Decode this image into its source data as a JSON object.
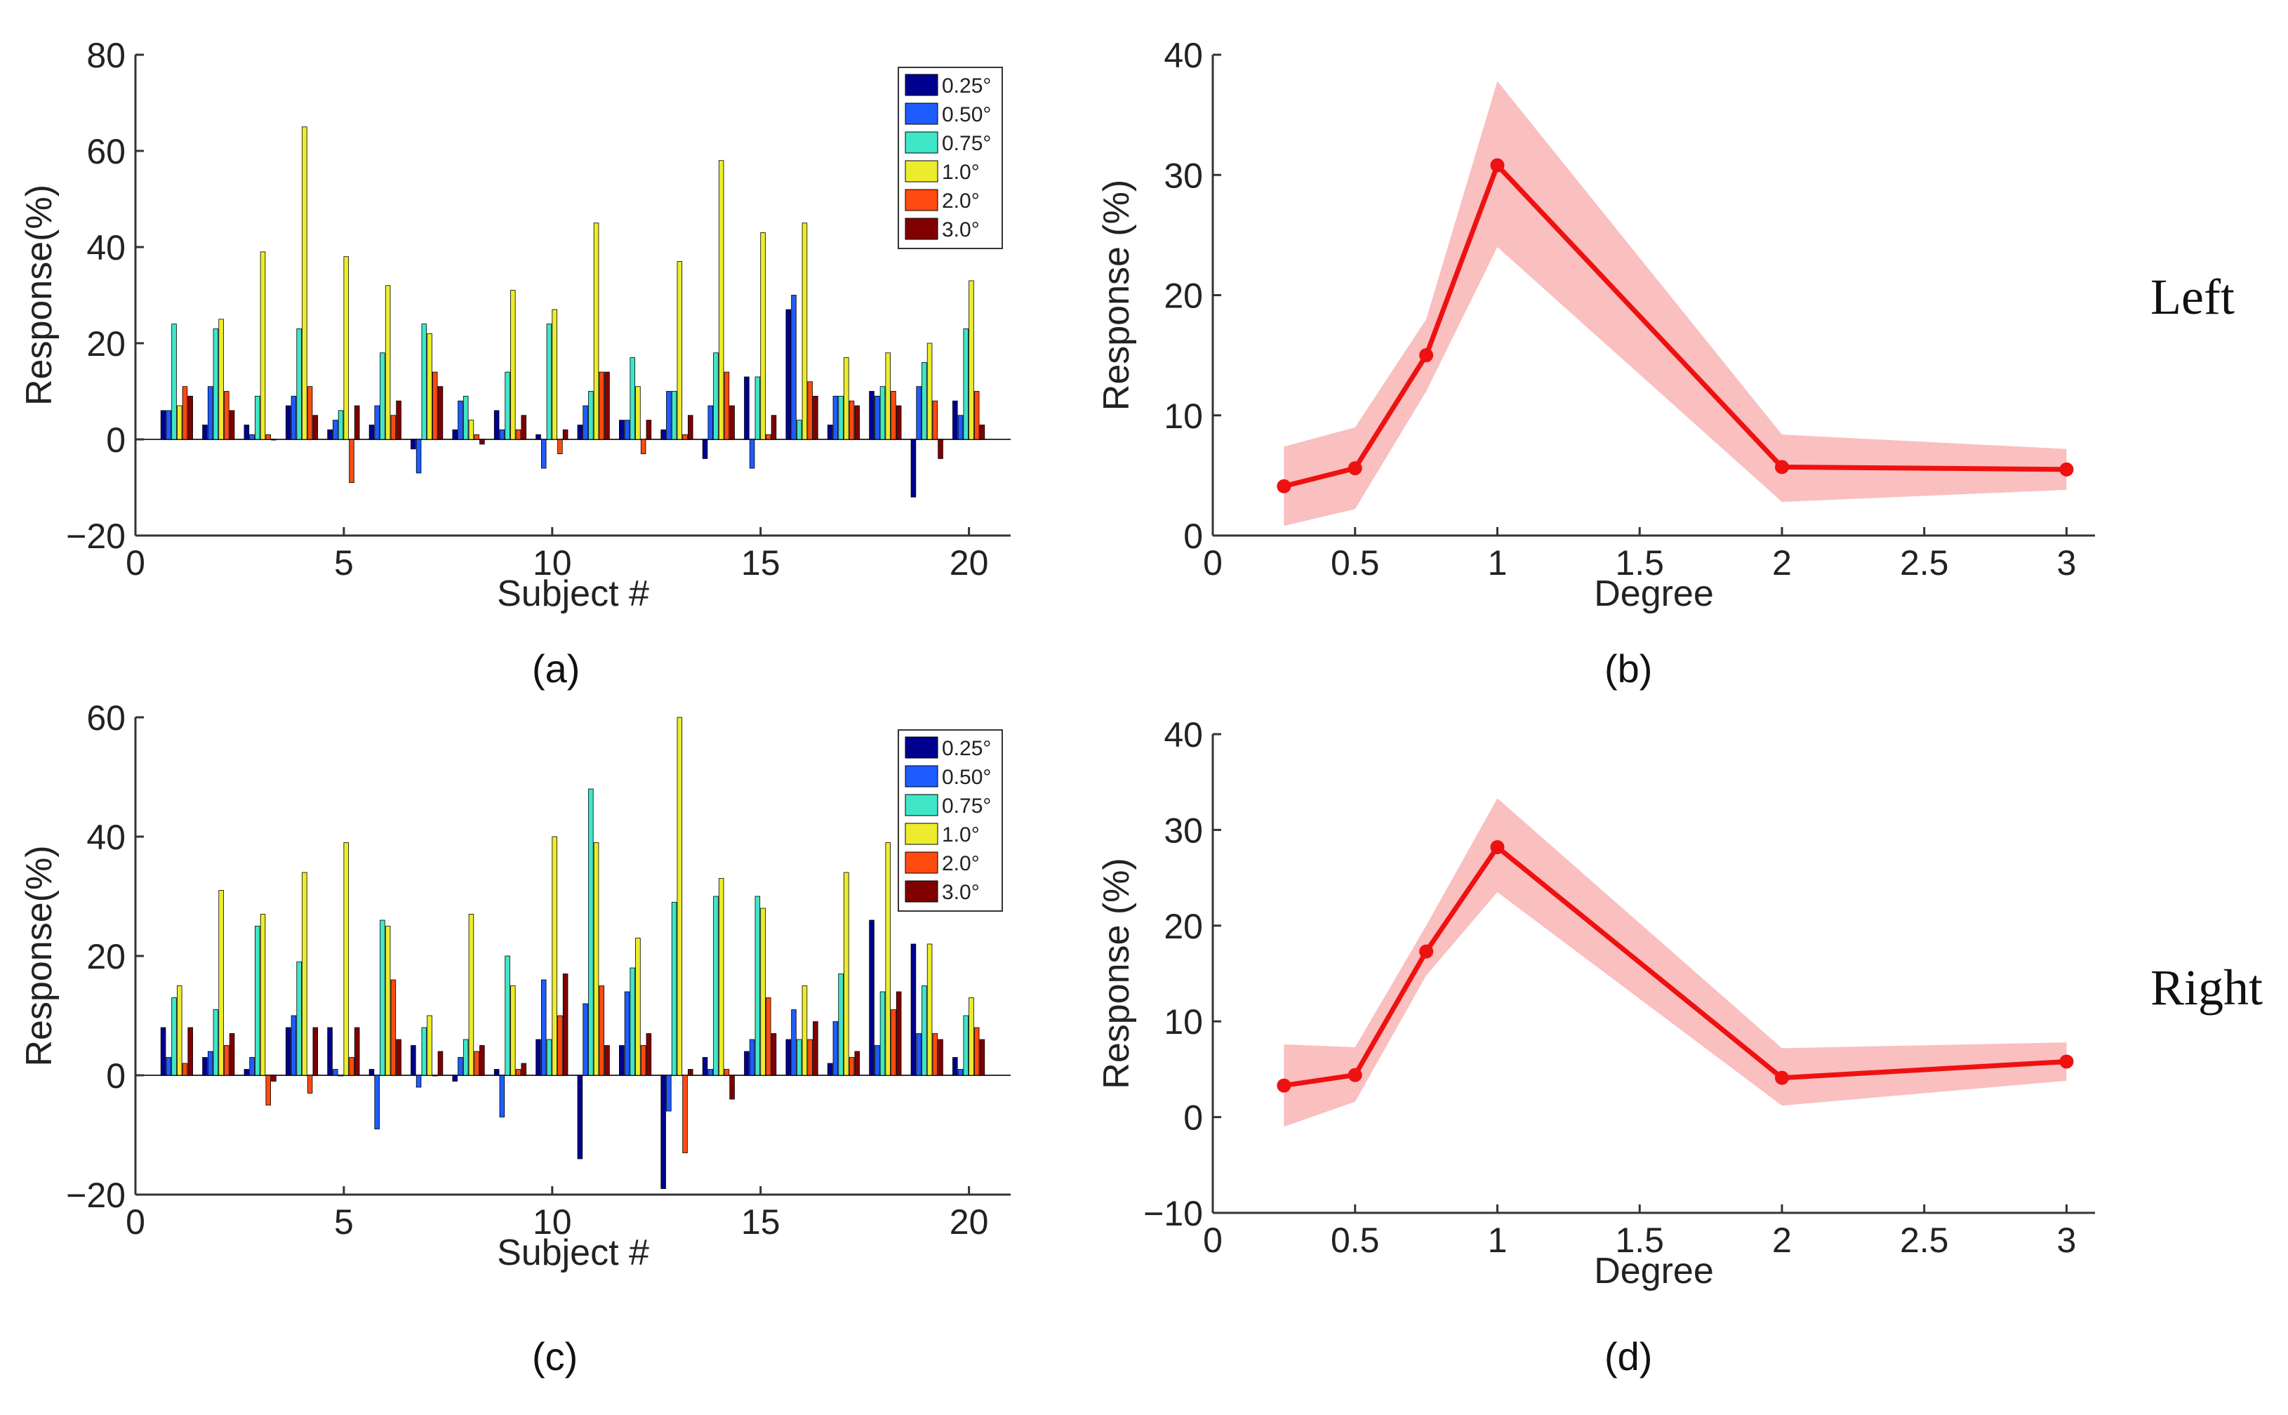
{
  "panel_captions": [
    "(a)",
    "(b)",
    "(c)",
    "(d)"
  ],
  "side_labels": {
    "left": "Left",
    "right": "Right"
  },
  "colors": {
    "series": [
      "#00008f",
      "#1e5cff",
      "#3fe6c8",
      "#ecec2c",
      "#ff4a10",
      "#800000"
    ],
    "line": "#ee1111",
    "band": "#f9b4b4",
    "axis": "#333333"
  },
  "chart_data": [
    {
      "panel": "(a)",
      "type": "bar",
      "xlabel": "Subject #",
      "ylabel": "Response(%)",
      "xlim": [
        0,
        21
      ],
      "ylim": [
        -20,
        80
      ],
      "xticks": [
        0,
        5,
        10,
        15,
        20
      ],
      "yticks": [
        -20,
        0,
        20,
        40,
        60,
        80
      ],
      "ytick_labels": [
        "−20",
        "0",
        "20",
        "40",
        "60",
        "80"
      ],
      "legend_position": "top-right",
      "categories": [
        1,
        2,
        3,
        4,
        5,
        6,
        7,
        8,
        9,
        10,
        11,
        12,
        13,
        14,
        15,
        16,
        17,
        18,
        19,
        20
      ],
      "series": [
        {
          "name": "0.25°",
          "values": [
            6,
            3,
            3,
            7,
            2,
            3,
            -2,
            2,
            6,
            1,
            3,
            4,
            2,
            -4,
            13,
            27,
            3,
            10,
            -12,
            8
          ]
        },
        {
          "name": "0.50°",
          "values": [
            6,
            11,
            1,
            9,
            4,
            7,
            -7,
            8,
            2,
            -6,
            7,
            4,
            10,
            7,
            -6,
            30,
            9,
            9,
            11,
            5
          ]
        },
        {
          "name": "0.75°",
          "values": [
            24,
            23,
            9,
            23,
            6,
            18,
            24,
            9,
            14,
            24,
            10,
            17,
            10,
            18,
            13,
            4,
            9,
            11,
            16,
            23
          ]
        },
        {
          "name": "1.0°",
          "values": [
            7,
            25,
            39,
            65,
            38,
            32,
            22,
            4,
            31,
            27,
            45,
            11,
            37,
            58,
            43,
            45,
            17,
            18,
            20,
            33
          ]
        },
        {
          "name": "2.0°",
          "values": [
            11,
            10,
            1,
            11,
            -9,
            5,
            14,
            1,
            2,
            -3,
            14,
            -3,
            1,
            14,
            1,
            12,
            8,
            10,
            8,
            10
          ]
        },
        {
          "name": "3.0°",
          "values": [
            9,
            6,
            0,
            5,
            7,
            8,
            11,
            -1,
            5,
            2,
            14,
            4,
            5,
            7,
            5,
            9,
            7,
            7,
            -4,
            3
          ]
        }
      ]
    },
    {
      "panel": "(b)",
      "type": "line",
      "xlabel": "Degree",
      "ylabel": "Response (%)",
      "xlim": [
        0,
        3.1
      ],
      "ylim": [
        0,
        40
      ],
      "xticks": [
        0,
        0.5,
        1,
        1.5,
        2,
        2.5,
        3
      ],
      "yticks": [
        0,
        10,
        20,
        30,
        40
      ],
      "ytick_labels": [
        "0",
        "10",
        "20",
        "30",
        "40"
      ],
      "x": [
        0.25,
        0.5,
        0.75,
        1,
        2,
        3
      ],
      "y": [
        4.1,
        5.6,
        15,
        30.8,
        5.7,
        5.5
      ],
      "band_lower": [
        0.8,
        2.2,
        12,
        24,
        2.8,
        3.8
      ],
      "band_upper": [
        7.4,
        9,
        18,
        37.8,
        8.4,
        7.2
      ]
    },
    {
      "panel": "(c)",
      "type": "bar",
      "xlabel": "Subject #",
      "ylabel": "Response(%)",
      "xlim": [
        0,
        21
      ],
      "ylim": [
        -20,
        60
      ],
      "xticks": [
        0,
        5,
        10,
        15,
        20
      ],
      "yticks": [
        -20,
        0,
        20,
        40,
        60
      ],
      "ytick_labels": [
        "−20",
        "0",
        "20",
        "40",
        "60"
      ],
      "legend_position": "top-right",
      "categories": [
        1,
        2,
        3,
        4,
        5,
        6,
        7,
        8,
        9,
        10,
        11,
        12,
        13,
        14,
        15,
        16,
        17,
        18,
        19,
        20
      ],
      "series": [
        {
          "name": "0.25°",
          "values": [
            8,
            3,
            1,
            8,
            8,
            1,
            5,
            -1,
            1,
            6,
            -14,
            5,
            -19,
            3,
            4,
            6,
            2,
            26,
            22,
            3
          ]
        },
        {
          "name": "0.50°",
          "values": [
            3,
            4,
            3,
            10,
            1,
            -9,
            -2,
            3,
            -7,
            16,
            12,
            14,
            -6,
            1,
            6,
            11,
            9,
            5,
            7,
            1
          ]
        },
        {
          "name": "0.75°",
          "values": [
            13,
            11,
            25,
            19,
            0,
            26,
            8,
            6,
            20,
            6,
            48,
            18,
            29,
            30,
            30,
            6,
            17,
            14,
            15,
            10
          ]
        },
        {
          "name": "1.0°",
          "values": [
            15,
            31,
            27,
            34,
            39,
            25,
            10,
            27,
            15,
            40,
            39,
            23,
            60,
            33,
            28,
            15,
            34,
            39,
            22,
            13
          ]
        },
        {
          "name": "2.0°",
          "values": [
            2,
            5,
            -5,
            -3,
            3,
            16,
            0,
            4,
            1,
            10,
            15,
            5,
            -13,
            1,
            13,
            6,
            3,
            11,
            7,
            8
          ]
        },
        {
          "name": "3.0°",
          "values": [
            8,
            7,
            -1,
            8,
            8,
            6,
            4,
            5,
            2,
            17,
            5,
            7,
            1,
            -4,
            7,
            9,
            4,
            14,
            6,
            6
          ]
        }
      ]
    },
    {
      "panel": "(d)",
      "type": "line",
      "xlabel": "Degree",
      "ylabel": "Response (%)",
      "xlim": [
        0,
        3.1
      ],
      "ylim": [
        -10,
        40
      ],
      "xticks": [
        0,
        0.5,
        1,
        1.5,
        2,
        2.5,
        3
      ],
      "yticks": [
        -10,
        0,
        10,
        20,
        30,
        40
      ],
      "ytick_labels": [
        "−10",
        "0",
        "10",
        "20",
        "30",
        "40"
      ],
      "x": [
        0.25,
        0.5,
        0.75,
        1,
        2,
        3
      ],
      "y": [
        3.3,
        4.4,
        17.3,
        28.2,
        4.1,
        5.8
      ],
      "band_lower": [
        -1,
        1.6,
        14.8,
        23.5,
        1.2,
        3.8
      ],
      "band_upper": [
        7.6,
        7.3,
        20,
        33.3,
        7.2,
        7.8
      ]
    }
  ]
}
